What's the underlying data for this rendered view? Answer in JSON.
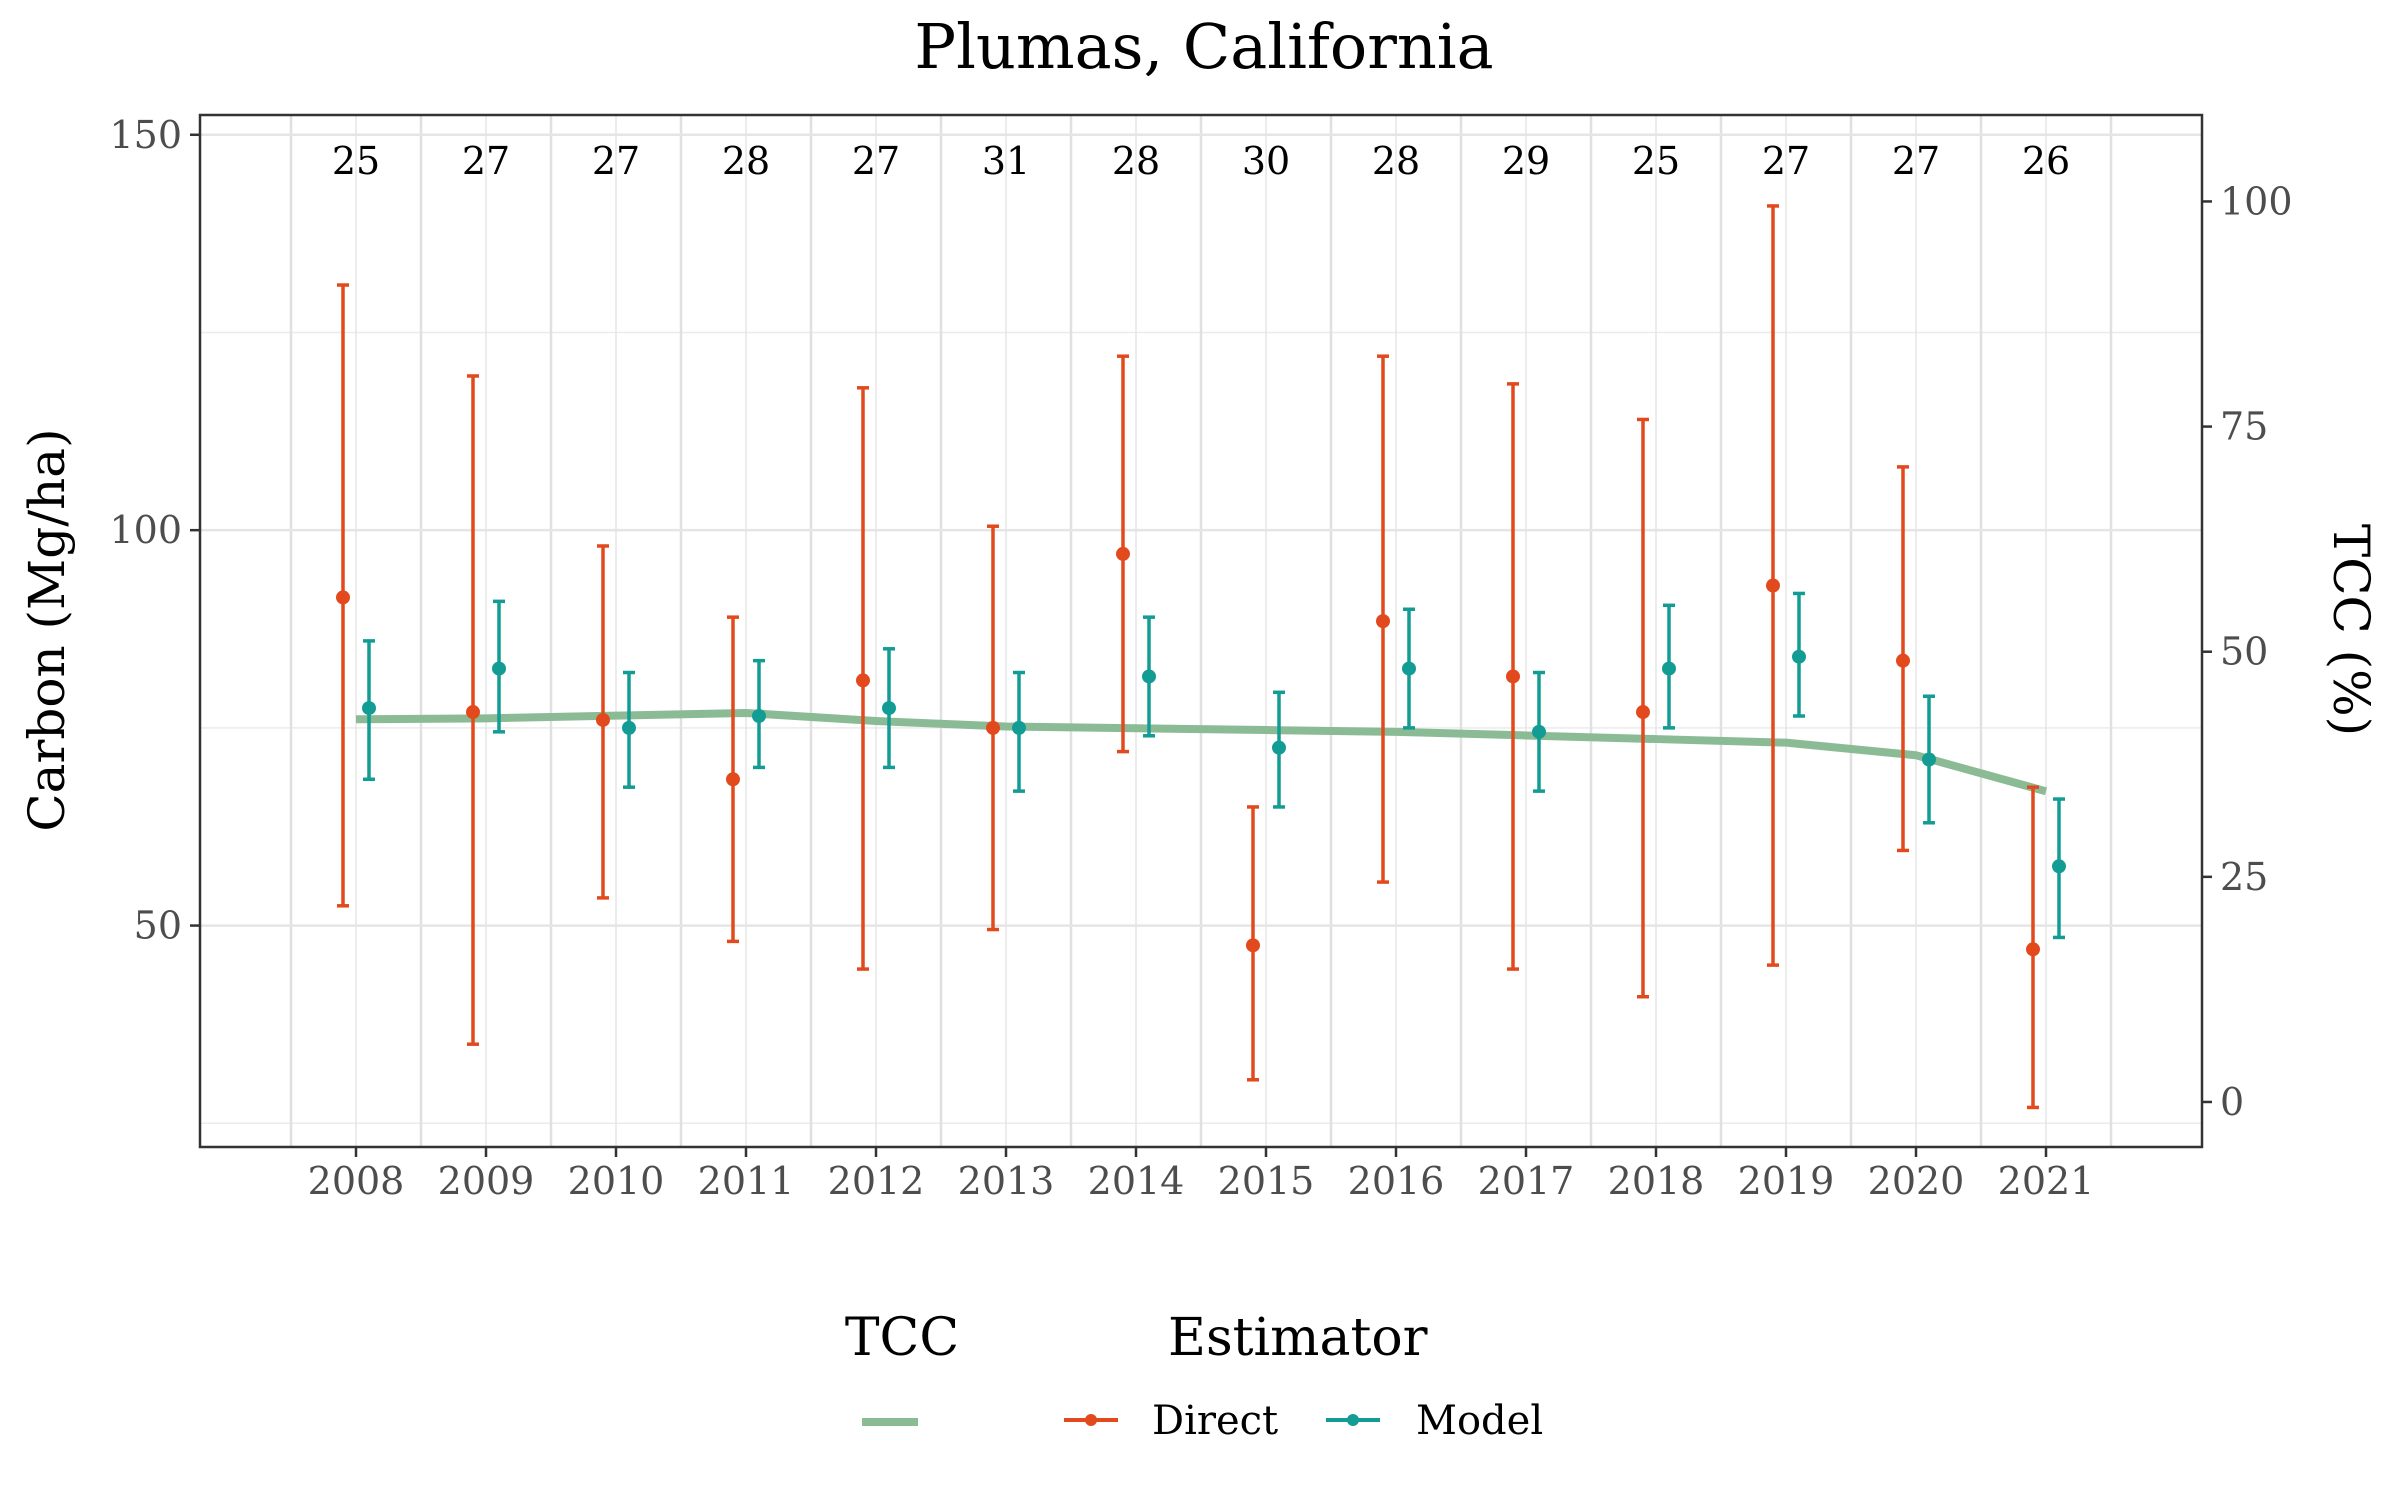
{
  "chart_data": {
    "type": "line",
    "title": "Plumas, California",
    "xlabel": "",
    "ylabel": "Carbon (Mg/ha)",
    "y2label": "TCC (%)",
    "x": [
      2008,
      2009,
      2010,
      2011,
      2012,
      2013,
      2014,
      2015,
      2016,
      2017,
      2018,
      2019,
      2020,
      2021
    ],
    "xlim": [
      2006.8,
      2022.2
    ],
    "ylim": [
      22,
      152.5
    ],
    "y2lim": [
      -5,
      109.6
    ],
    "yticks": [
      50,
      100,
      150
    ],
    "y2ticks": [
      0,
      25,
      50,
      75,
      100
    ],
    "grid": true,
    "legend_position": "bottom",
    "counts": [
      "25",
      "27",
      "27",
      "28",
      "27",
      "31",
      "28",
      "30",
      "28",
      "29",
      "25",
      "27",
      "27",
      "26"
    ],
    "series": [
      {
        "name": "Direct",
        "legend": "Estimator",
        "color": "#E24A1E",
        "x_offset": -0.1,
        "values": [
          91.5,
          77,
          76,
          68.5,
          81,
          75,
          97,
          47.5,
          88.5,
          81.5,
          77,
          93,
          83.5,
          47
        ],
        "lower": [
          52.5,
          35,
          53.5,
          48,
          44.5,
          49.5,
          72,
          30.5,
          55.5,
          44.5,
          41,
          45,
          59.5,
          27
        ],
        "upper": [
          131,
          119.5,
          98,
          89,
          118,
          100.5,
          122,
          65,
          122,
          118.5,
          114,
          141,
          108,
          67.5
        ]
      },
      {
        "name": "Model",
        "legend": "Estimator",
        "color": "#139C94",
        "x_offset": 0.1,
        "values": [
          77.5,
          82.5,
          75,
          76.5,
          77.5,
          75,
          81.5,
          72.5,
          82.5,
          74.5,
          82.5,
          84,
          71,
          57.5
        ],
        "lower": [
          68.5,
          74.5,
          67.5,
          70,
          70,
          67,
          74,
          65,
          75,
          67,
          75,
          76.5,
          63,
          48.5
        ],
        "upper": [
          86,
          91,
          82,
          83.5,
          85,
          82,
          89,
          79.5,
          90,
          82,
          90.5,
          92,
          79,
          66
        ]
      }
    ],
    "tcc_series": {
      "name": "",
      "legend": "TCC",
      "color": "#8BBB94",
      "axis": "right",
      "values": [
        42.5,
        42.6,
        42.9,
        43.2,
        42.3,
        41.7,
        41.5,
        41.3,
        41.1,
        40.7,
        40.3,
        39.9,
        38.5,
        34.5
      ]
    },
    "legend": {
      "tcc_title": "TCC",
      "estimator_title": "Estimator",
      "items": [
        "Direct",
        "Model"
      ]
    }
  }
}
